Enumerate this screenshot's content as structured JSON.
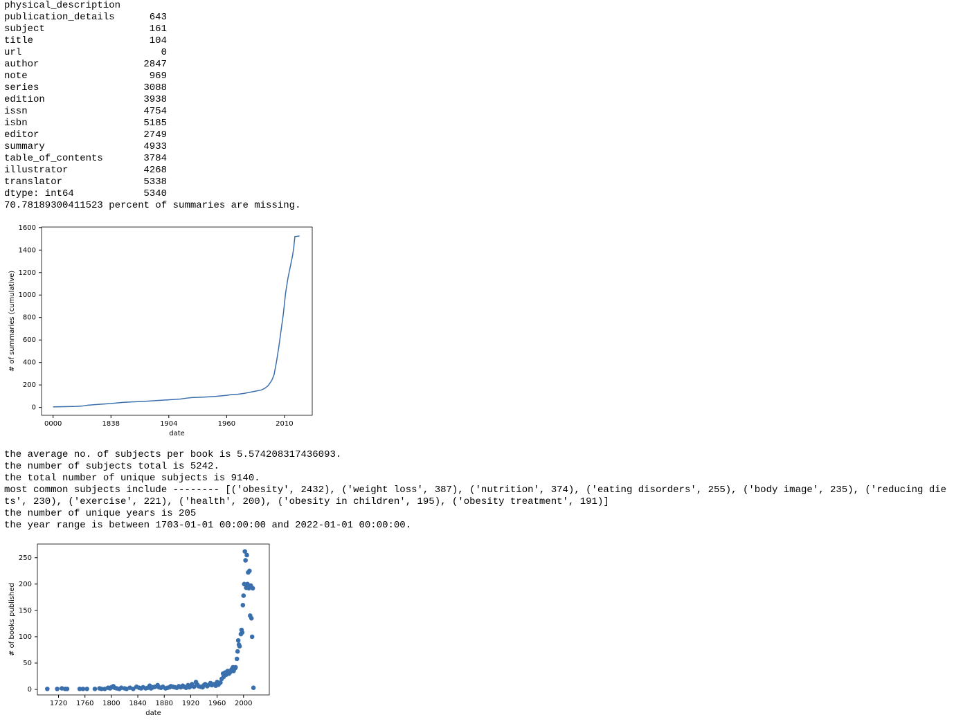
{
  "missing_counts": {
    "rows": [
      [
        "physical_description",
        643
      ],
      [
        "publication_details",
        161
      ],
      [
        "subject",
        104
      ],
      [
        "title",
        0
      ],
      [
        "url",
        2847
      ],
      [
        "author",
        969
      ],
      [
        "note",
        3088
      ],
      [
        "series",
        3938
      ],
      [
        "edition",
        4754
      ],
      [
        "issn",
        5185
      ],
      [
        "isbn",
        2749
      ],
      [
        "editor",
        4933
      ],
      [
        "summary",
        3784
      ],
      [
        "table_of_contents",
        4268
      ],
      [
        "illustrator",
        5338
      ],
      [
        "translator",
        5340
      ]
    ],
    "dtype": "dtype: int64"
  },
  "missing_summary_note": "70.78189300411523 percent of summaries are missing.",
  "stats_lines": [
    "the average no. of subjects per book is 5.574208317436093.",
    "the number of subjects total is 5242.",
    "the total number of unique subjects is 9140.",
    "most common subjects include -------- [('obesity', 2432), ('weight loss', 387), ('nutrition', 374), ('eating disorders', 255), ('body image', 235), ('reducing diets', 230), ('exercise', 221), ('health', 200), ('obesity in children', 195), ('obesity treatment', 191)]",
    "the number of unique years is 205",
    "the year range is between 1703-01-01 00:00:00 and 2022-01-01 00:00:00."
  ],
  "chart_data": [
    {
      "type": "line",
      "xlabel": "date",
      "ylabel": "# of summaries (cumulative)",
      "color": "#3a6fad",
      "x": [
        0,
        10,
        20,
        25,
        30,
        40,
        50,
        60,
        70,
        80,
        90,
        100,
        110,
        115,
        120,
        130,
        140,
        150,
        155,
        160,
        165,
        170,
        175,
        180,
        183,
        186,
        189,
        191,
        193,
        195,
        197,
        199,
        201,
        203,
        205,
        207,
        208,
        209,
        213
      ],
      "values": [
        5,
        7,
        9,
        12,
        20,
        28,
        35,
        45,
        50,
        55,
        62,
        68,
        75,
        82,
        88,
        92,
        98,
        108,
        115,
        118,
        125,
        135,
        145,
        155,
        170,
        195,
        240,
        290,
        400,
        530,
        680,
        830,
        1020,
        1150,
        1250,
        1350,
        1420,
        1520,
        1525
      ],
      "xlim": [
        -10,
        224
      ],
      "xticks": [
        {
          "value": 0,
          "label": "0000"
        },
        {
          "value": 50,
          "label": "1838"
        },
        {
          "value": 100,
          "label": "1904"
        },
        {
          "value": 150,
          "label": "1960"
        },
        {
          "value": 200,
          "label": "2010"
        }
      ],
      "ylim": [
        -70,
        1605
      ],
      "yticks": [
        0,
        200,
        400,
        600,
        800,
        1000,
        1200,
        1400,
        1600
      ]
    },
    {
      "type": "scatter",
      "xlabel": "date",
      "ylabel": "# of books published",
      "color": "#3a6fad",
      "x": [
        1703,
        1718,
        1725,
        1730,
        1733,
        1752,
        1757,
        1763,
        1775,
        1782,
        1785,
        1790,
        1795,
        1798,
        1800,
        1803,
        1805,
        1808,
        1812,
        1815,
        1820,
        1823,
        1828,
        1833,
        1838,
        1842,
        1845,
        1848,
        1852,
        1855,
        1858,
        1860,
        1863,
        1866,
        1870,
        1872,
        1875,
        1878,
        1882,
        1885,
        1888,
        1890,
        1893,
        1896,
        1899,
        1902,
        1905,
        1908,
        1910,
        1913,
        1916,
        1918,
        1920,
        1922,
        1925,
        1928,
        1930,
        1932,
        1935,
        1938,
        1940,
        1942,
        1945,
        1948,
        1950,
        1952,
        1955,
        1958,
        1960,
        1962,
        1965,
        1967,
        1969,
        1970,
        1972,
        1974,
        1976,
        1978,
        1980,
        1982,
        1984,
        1985,
        1987,
        1988,
        1990,
        1991,
        1992,
        1993,
        1994,
        1996,
        1997,
        1998,
        1999,
        2000,
        2001,
        2002,
        2003,
        2004,
        2005,
        2006,
        2007,
        2008,
        2009,
        2010,
        2011,
        2012,
        2013,
        2014,
        2015
      ],
      "values": [
        1,
        1,
        2,
        1,
        1,
        1,
        1,
        1,
        1,
        2,
        1,
        1,
        3,
        2,
        4,
        6,
        3,
        2,
        1,
        3,
        2,
        1,
        3,
        1,
        5,
        3,
        2,
        4,
        2,
        3,
        7,
        2,
        4,
        5,
        8,
        4,
        3,
        5,
        2,
        3,
        4,
        6,
        5,
        4,
        3,
        6,
        4,
        7,
        5,
        3,
        8,
        4,
        6,
        10,
        5,
        14,
        9,
        6,
        5,
        4,
        8,
        10,
        6,
        9,
        12,
        8,
        10,
        7,
        14,
        9,
        13,
        20,
        30,
        24,
        32,
        28,
        35,
        30,
        33,
        38,
        42,
        35,
        40,
        42,
        58,
        72,
        93,
        85,
        82,
        105,
        113,
        108,
        160,
        178,
        200,
        262,
        245,
        193,
        255,
        200,
        222,
        192,
        225,
        140,
        197,
        135,
        100,
        192,
        3
      ],
      "xlim": [
        1688,
        2039
      ],
      "xticks": [
        1720,
        1760,
        1800,
        1840,
        1880,
        1920,
        1960,
        2000
      ],
      "ylim": [
        -10.5,
        276
      ],
      "yticks": [
        0,
        50,
        100,
        150,
        200,
        250
      ]
    }
  ]
}
